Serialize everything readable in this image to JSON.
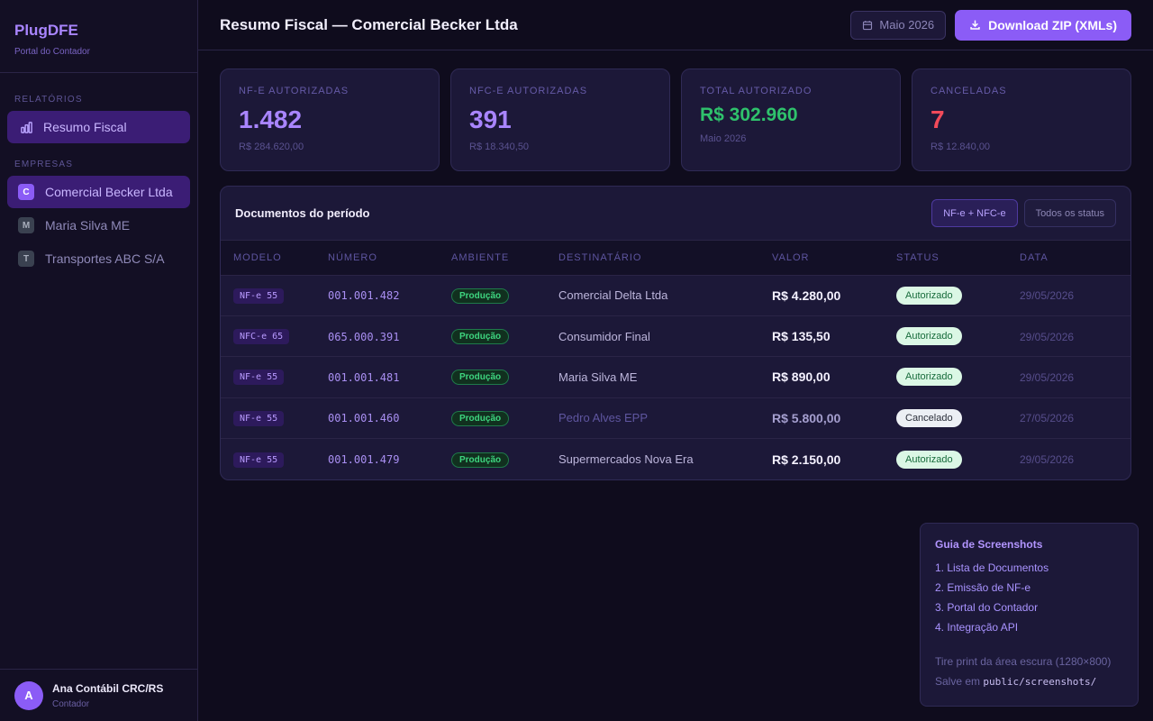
{
  "brand": {
    "name": "PlugDFE",
    "subtitle": "Portal do Contador"
  },
  "sidebar": {
    "reports_label": "RELATÓRIOS",
    "reports": [
      {
        "label": "Resumo Fiscal",
        "icon": "bar-chart-icon",
        "active": true
      }
    ],
    "companies_label": "EMPRESAS",
    "companies": [
      {
        "initial": "C",
        "label": "Comercial Becker Ltda",
        "active": true
      },
      {
        "initial": "M",
        "label": "Maria Silva ME",
        "active": false
      },
      {
        "initial": "T",
        "label": "Transportes ABC S/A",
        "active": false
      }
    ],
    "user": {
      "initial": "A",
      "name": "Ana Contábil CRC/RS",
      "role": "Contador"
    }
  },
  "header": {
    "title": "Resumo Fiscal — Comercial Becker Ltda",
    "period": "Maio 2026",
    "download_label": "Download ZIP (XMLs)"
  },
  "stats": [
    {
      "label": "NF-E AUTORIZADAS",
      "value": "1.482",
      "sub": "R$ 284.620,00",
      "color": "#a985ff"
    },
    {
      "label": "NFC-E AUTORIZADAS",
      "value": "391",
      "sub": "R$ 18.340,50",
      "color": "#a985ff"
    },
    {
      "label": "TOTAL AUTORIZADO",
      "value": "R$ 302.960",
      "sub": "Maio 2026",
      "color": "#2fc26c"
    },
    {
      "label": "CANCELADAS",
      "value": "7",
      "sub": "R$ 12.840,00",
      "color": "#f24a5a"
    }
  ],
  "documents": {
    "title": "Documentos do período",
    "filter_model": "NF-e + NFC-e",
    "filter_status": "Todos os status",
    "columns": [
      "MODELO",
      "NÚMERO",
      "AMBIENTE",
      "DESTINATÁRIO",
      "VALOR",
      "STATUS",
      "DATA"
    ],
    "rows": [
      {
        "model": "NF-e 55",
        "number": "001.001.482",
        "env": "Produção",
        "recipient": "Comercial Delta Ltda",
        "value": "R$ 4.280,00",
        "status": "Autorizado",
        "date": "29/05/2026",
        "cancelled": false
      },
      {
        "model": "NFC-e 65",
        "number": "065.000.391",
        "env": "Produção",
        "recipient": "Consumidor Final",
        "value": "R$ 135,50",
        "status": "Autorizado",
        "date": "29/05/2026",
        "cancelled": false
      },
      {
        "model": "NF-e 55",
        "number": "001.001.481",
        "env": "Produção",
        "recipient": "Maria Silva ME",
        "value": "R$ 890,00",
        "status": "Autorizado",
        "date": "29/05/2026",
        "cancelled": false
      },
      {
        "model": "NF-e 55",
        "number": "001.001.460",
        "env": "Produção",
        "recipient": "Pedro Alves EPP",
        "value": "R$ 5.800,00",
        "status": "Cancelado",
        "date": "27/05/2026",
        "cancelled": true
      },
      {
        "model": "NF-e 55",
        "number": "001.001.479",
        "env": "Produção",
        "recipient": "Supermercados Nova Era",
        "value": "R$ 2.150,00",
        "status": "Autorizado",
        "date": "29/05/2026",
        "cancelled": false
      }
    ]
  },
  "guide": {
    "title": "Guia de Screenshots",
    "items": [
      "1. Lista de Documentos",
      "2. Emissão de NF-e",
      "3. Portal do Contador",
      "4. Integração API"
    ],
    "note": "Tire print da área escura (1280×800)",
    "save_prefix": "Salve em",
    "save_path": "public/screenshots/"
  }
}
